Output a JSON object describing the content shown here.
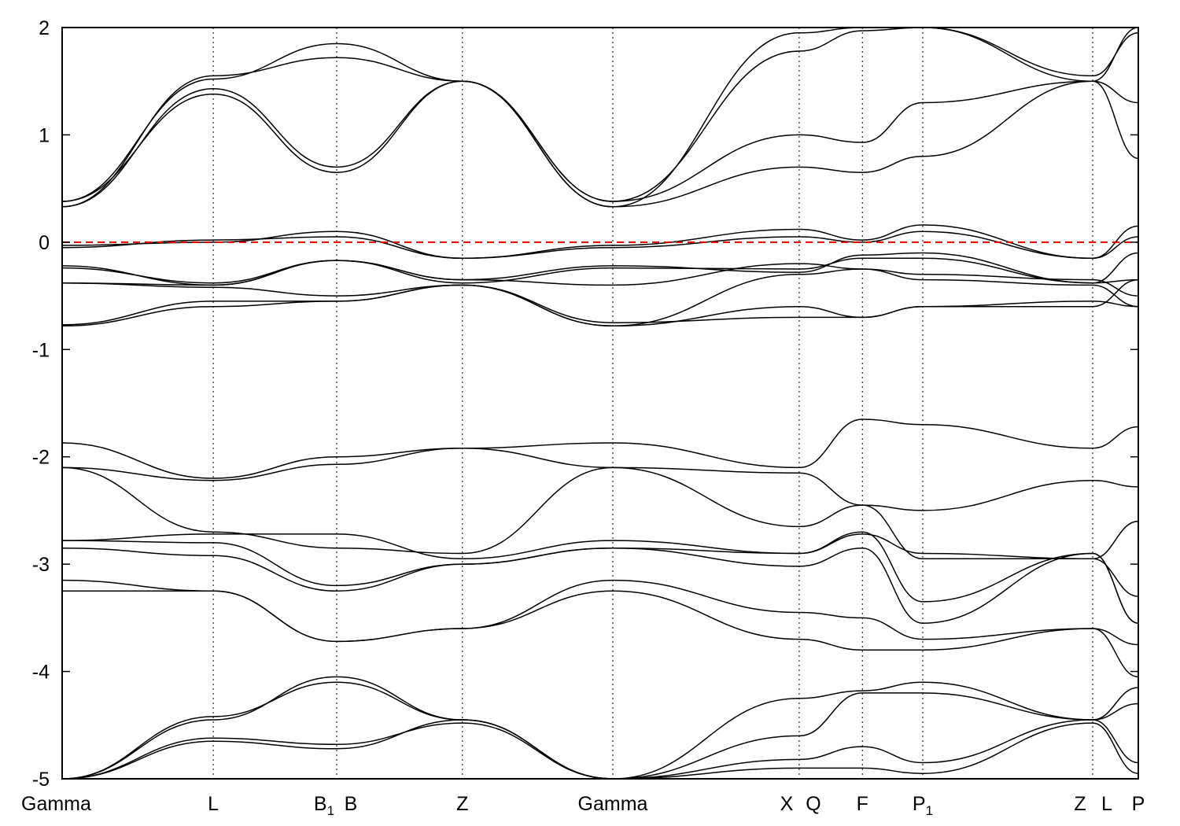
{
  "chart_data": {
    "type": "line",
    "title": "",
    "xlabel": "",
    "ylabel": "",
    "ylim": [
      -5,
      2
    ],
    "yticks": [
      2,
      1,
      0,
      -1,
      -2,
      -3,
      -4,
      -5
    ],
    "ytick_labels": [
      "2",
      "1",
      "0",
      "-1",
      "-2",
      "-3",
      "-4",
      "-5"
    ],
    "xlim": [
      0,
      1
    ],
    "kpoints": [
      {
        "label": "Gamma",
        "sub": "",
        "x": 0.0
      },
      {
        "label": "L",
        "sub": "",
        "x": 0.1404
      },
      {
        "label": "B",
        "sub": "1",
        "x": 0.2551
      },
      {
        "label": "B",
        "sub": "",
        "x": 0.2551
      },
      {
        "label": "Z",
        "sub": "",
        "x": 0.3719
      },
      {
        "label": "Gamma",
        "sub": "",
        "x": 0.5117
      },
      {
        "label": "X",
        "sub": "",
        "x": 0.6849
      },
      {
        "label": "Q",
        "sub": "",
        "x": 0.6849
      },
      {
        "label": "F",
        "sub": "",
        "x": 0.7436
      },
      {
        "label": "P",
        "sub": "1",
        "x": 0.7997
      },
      {
        "label": "Z",
        "sub": "",
        "x": 0.9576
      },
      {
        "label": "L",
        "sub": "",
        "x": 0.9576
      },
      {
        "label": "P",
        "sub": "",
        "x": 1.0
      }
    ],
    "fermi_level": 0.0,
    "grid": false,
    "segment_x": [
      0.0,
      0.1404,
      0.2551,
      0.3719,
      0.5117,
      0.6849,
      0.7436,
      0.7997,
      0.9576,
      1.0
    ],
    "series": [
      {
        "values": [
          0.38,
          1.38,
          0.65,
          1.5,
          0.38,
          1.0,
          0.93,
          1.3,
          1.5,
          1.3
        ]
      },
      {
        "values": [
          0.33,
          1.43,
          0.7,
          1.5,
          0.33,
          0.7,
          0.65,
          0.8,
          1.5,
          0.78
        ]
      },
      {
        "values": [
          0.33,
          1.55,
          1.72,
          1.5,
          0.38,
          1.78,
          1.97,
          2.0,
          1.55,
          1.95
        ]
      },
      {
        "values": [
          0.38,
          1.52,
          1.85,
          1.5,
          0.33,
          1.95,
          2.0,
          2.0,
          1.5,
          2.0
        ]
      },
      {
        "values": [
          -0.03,
          0.0,
          0.1,
          -0.15,
          -0.03,
          0.12,
          0.02,
          0.16,
          -0.15,
          0.15
        ]
      },
      {
        "values": [
          -0.05,
          0.02,
          0.05,
          -0.15,
          -0.05,
          0.05,
          0.0,
          0.1,
          -0.15,
          0.05
        ]
      },
      {
        "values": [
          -0.22,
          -0.4,
          -0.17,
          -0.35,
          -0.22,
          -0.28,
          -0.12,
          -0.1,
          -0.38,
          -0.1
        ]
      },
      {
        "values": [
          -0.24,
          -0.38,
          -0.17,
          -0.38,
          -0.24,
          -0.25,
          -0.15,
          -0.15,
          -0.38,
          -0.35
        ]
      },
      {
        "values": [
          -0.38,
          -0.4,
          -0.17,
          -0.35,
          -0.4,
          -0.2,
          -0.25,
          -0.3,
          -0.35,
          -0.5
        ]
      },
      {
        "values": [
          -0.38,
          -0.42,
          -0.5,
          -0.4,
          -0.78,
          -0.3,
          -0.25,
          -0.35,
          -0.4,
          -0.6
        ]
      },
      {
        "values": [
          -0.77,
          -0.55,
          -0.55,
          -0.4,
          -0.78,
          -0.6,
          -0.7,
          -0.6,
          -0.55,
          -0.6
        ]
      },
      {
        "values": [
          -0.78,
          -0.6,
          -0.55,
          -0.4,
          -0.75,
          -0.7,
          -0.7,
          -0.6,
          -0.6,
          -0.35
        ]
      },
      {
        "values": [
          -1.87,
          -2.2,
          -2.0,
          -1.92,
          -1.87,
          -2.1,
          -1.65,
          -1.7,
          -1.92,
          -1.72
        ]
      },
      {
        "values": [
          -2.1,
          -2.22,
          -2.07,
          -1.92,
          -2.1,
          -2.15,
          -2.45,
          -2.5,
          -2.22,
          -2.28
        ]
      },
      {
        "values": [
          -2.1,
          -2.7,
          -2.85,
          -2.9,
          -2.1,
          -2.65,
          -2.45,
          -2.95,
          -2.95,
          -2.6
        ]
      },
      {
        "values": [
          -2.78,
          -2.72,
          -2.72,
          -2.95,
          -2.78,
          -2.9,
          -2.72,
          -2.9,
          -2.95,
          -3.3
        ]
      },
      {
        "values": [
          -2.78,
          -2.8,
          -3.2,
          -3.0,
          -2.85,
          -2.9,
          -2.7,
          -3.35,
          -2.9,
          -3.55
        ]
      },
      {
        "values": [
          -2.85,
          -2.92,
          -3.25,
          -3.0,
          -2.85,
          -3.02,
          -2.85,
          -3.55,
          -2.9,
          -3.55
        ]
      },
      {
        "values": [
          -3.15,
          -3.25,
          -3.72,
          -3.6,
          -3.15,
          -3.45,
          -3.5,
          -3.7,
          -3.6,
          -3.75
        ]
      },
      {
        "values": [
          -3.25,
          -3.25,
          -3.72,
          -3.6,
          -3.25,
          -3.7,
          -3.8,
          -3.8,
          -3.6,
          -4.05
        ]
      },
      {
        "values": [
          -5.0,
          -4.42,
          -4.1,
          -4.45,
          -5.0,
          -4.25,
          -4.18,
          -4.1,
          -4.45,
          -4.15
        ]
      },
      {
        "values": [
          -5.0,
          -4.45,
          -4.05,
          -4.45,
          -5.0,
          -4.6,
          -4.2,
          -4.2,
          -4.45,
          -4.3
        ]
      },
      {
        "values": [
          -5.0,
          -4.65,
          -4.72,
          -4.45,
          -5.0,
          -4.82,
          -4.7,
          -4.85,
          -4.45,
          -4.85
        ]
      },
      {
        "values": [
          -5.0,
          -4.62,
          -4.68,
          -4.48,
          -5.0,
          -4.9,
          -4.9,
          -4.95,
          -4.48,
          -4.95
        ]
      }
    ]
  }
}
